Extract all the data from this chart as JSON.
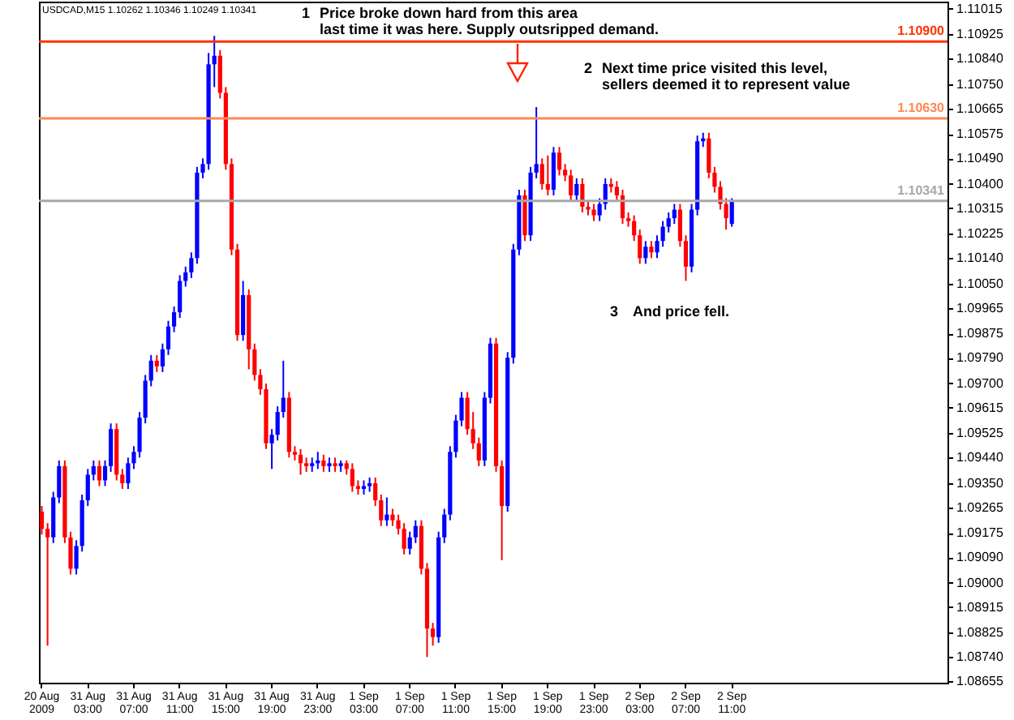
{
  "chart_data": {
    "type": "candlestick",
    "title": "USDCAD,M15  1.10262 1.10346 1.10249 1.10341",
    "annotations": [
      "1",
      "Price broke down hard from this area\nlast time it was here.  Supply outsripped demand.",
      "2",
      "Next time price visited this level,\nsellers deemed it to represent value",
      "3",
      "And price fell."
    ],
    "categories": [
      "20 Aug 2009",
      null,
      null,
      null,
      null,
      null,
      null,
      null,
      "31 Aug 03:00",
      null,
      null,
      null,
      null,
      null,
      null,
      null,
      "31 Aug 07:00",
      null,
      null,
      null,
      null,
      null,
      null,
      null,
      "31 Aug 11:00",
      null,
      null,
      null,
      null,
      null,
      null,
      null,
      "31 Aug 15:00",
      null,
      null,
      null,
      null,
      null,
      null,
      null,
      "31 Aug 19:00",
      null,
      null,
      null,
      null,
      null,
      null,
      null,
      "31 Aug 23:00",
      null,
      null,
      null,
      null,
      null,
      null,
      null,
      "1 Sep 03:00",
      null,
      null,
      null,
      null,
      null,
      null,
      null,
      "1 Sep 07:00",
      null,
      null,
      null,
      null,
      null,
      null,
      null,
      "1 Sep 11:00",
      null,
      null,
      null,
      null,
      null,
      null,
      null,
      "1 Sep 15:00",
      null,
      null,
      null,
      null,
      null,
      null,
      null,
      "1 Sep 19:00",
      null,
      null,
      null,
      null,
      null,
      null,
      null,
      "1 Sep 23:00",
      null,
      null,
      null,
      null,
      null,
      null,
      null,
      "2 Sep 03:00",
      null,
      null,
      null,
      null,
      null,
      null,
      null,
      "2 Sep 07:00",
      null,
      null,
      null,
      null,
      null,
      null,
      null,
      "2 Sep 11:00",
      null,
      null,
      null,
      null,
      null,
      null,
      null,
      null,
      null,
      null,
      null,
      null,
      null,
      null,
      null,
      null,
      null,
      null,
      null,
      null,
      null,
      null,
      null,
      null,
      null,
      null,
      null,
      null,
      null,
      null,
      null,
      null,
      null,
      null,
      null,
      null,
      null
    ],
    "ohlc": [
      [
        1.0925,
        1.0927,
        1.0917,
        1.0919
      ],
      [
        1.0919,
        1.0921,
        1.0878,
        1.0916
      ],
      [
        1.0916,
        1.0932,
        1.0914,
        1.093
      ],
      [
        1.093,
        1.0943,
        1.0928,
        1.0941
      ],
      [
        1.0941,
        1.0943,
        1.0914,
        1.0916
      ],
      [
        1.0916,
        1.0918,
        1.0903,
        1.0905
      ],
      [
        1.0905,
        1.0915,
        1.0903,
        1.0913
      ],
      [
        1.0913,
        1.0931,
        1.0911,
        1.0929
      ],
      [
        1.0929,
        1.094,
        1.0927,
        1.0938
      ],
      [
        1.0938,
        1.0943,
        1.0936,
        1.0941
      ],
      [
        1.0941,
        1.0943,
        1.0934,
        1.0936
      ],
      [
        1.0936,
        1.0943,
        1.0934,
        1.0941
      ],
      [
        1.0941,
        1.0956,
        1.0939,
        1.0954
      ],
      [
        1.0954,
        1.0956,
        1.0936,
        1.0938
      ],
      [
        1.0938,
        1.094,
        1.0933,
        1.0935
      ],
      [
        1.0935,
        1.0944,
        1.0933,
        1.0942
      ],
      [
        1.0942,
        1.0948,
        1.094,
        1.0946
      ],
      [
        1.0946,
        1.096,
        1.0944,
        1.0958
      ],
      [
        1.0958,
        1.0973,
        1.0956,
        1.0971
      ],
      [
        1.0971,
        1.098,
        1.0969,
        1.0978
      ],
      [
        1.0978,
        1.098,
        1.0974,
        1.0976
      ],
      [
        1.0976,
        1.0984,
        1.0974,
        1.0982
      ],
      [
        1.0982,
        1.0992,
        1.098,
        1.099
      ],
      [
        1.099,
        1.0997,
        1.0988,
        1.0995
      ],
      [
        1.0995,
        1.1008,
        1.0993,
        1.1006
      ],
      [
        1.1006,
        1.1011,
        1.1004,
        1.1009
      ],
      [
        1.1009,
        1.1016,
        1.1007,
        1.1014
      ],
      [
        1.1014,
        1.1046,
        1.1012,
        1.1044
      ],
      [
        1.1044,
        1.1049,
        1.1042,
        1.1047
      ],
      [
        1.1047,
        1.1086,
        1.1045,
        1.1082
      ],
      [
        1.1082,
        1.1092,
        1.1074,
        1.1085
      ],
      [
        1.1085,
        1.1087,
        1.107,
        1.1072
      ],
      [
        1.1072,
        1.1074,
        1.1045,
        1.1047
      ],
      [
        1.1047,
        1.1049,
        1.1015,
        1.1017
      ],
      [
        1.1017,
        1.1019,
        1.0985,
        1.0987
      ],
      [
        1.0987,
        1.1006,
        1.0985,
        1.1001
      ],
      [
        1.1001,
        1.1003,
        1.0975,
        1.0982
      ],
      [
        1.0982,
        1.0984,
        1.0971,
        1.0973
      ],
      [
        1.0973,
        1.0975,
        1.0966,
        1.0968
      ],
      [
        1.0968,
        1.097,
        1.0947,
        1.0949
      ],
      [
        1.0949,
        1.0954,
        1.094,
        1.0952
      ],
      [
        1.0952,
        1.0962,
        1.095,
        1.096
      ],
      [
        1.096,
        1.0978,
        1.0958,
        1.0965
      ],
      [
        1.0965,
        1.0967,
        1.0944,
        1.0946
      ],
      [
        1.0946,
        1.0948,
        1.0943,
        1.0945
      ],
      [
        1.0945,
        1.0947,
        1.0938,
        1.0942
      ],
      [
        1.0942,
        1.0944,
        1.0939,
        1.0941
      ],
      [
        1.0941,
        1.0944,
        1.0939,
        1.0942
      ],
      [
        1.0942,
        1.0946,
        1.094,
        1.0943
      ],
      [
        1.0943,
        1.0945,
        1.0939,
        1.0941
      ],
      [
        1.0941,
        1.0944,
        1.0939,
        1.0942
      ],
      [
        1.0942,
        1.0944,
        1.0939,
        1.0941
      ],
      [
        1.0941,
        1.0943,
        1.0939,
        1.0942
      ],
      [
        1.0942,
        1.0943,
        1.0938,
        1.094
      ],
      [
        1.094,
        1.0942,
        1.0932,
        1.0934
      ],
      [
        1.0934,
        1.0936,
        1.0931,
        1.0933
      ],
      [
        1.0933,
        1.0936,
        1.0931,
        1.0934
      ],
      [
        1.0934,
        1.0937,
        1.0932,
        1.0935
      ],
      [
        1.0935,
        1.0937,
        1.0927,
        1.0929
      ],
      [
        1.0929,
        1.0931,
        1.092,
        1.0922
      ],
      [
        1.0922,
        1.093,
        1.092,
        1.0924
      ],
      [
        1.0924,
        1.0926,
        1.092,
        1.0922
      ],
      [
        1.0922,
        1.0924,
        1.0917,
        1.0919
      ],
      [
        1.0919,
        1.0921,
        1.091,
        1.0912
      ],
      [
        1.0912,
        1.0918,
        1.091,
        1.0916
      ],
      [
        1.0916,
        1.0922,
        1.0914,
        1.092
      ],
      [
        1.092,
        1.0922,
        1.0903,
        1.0905
      ],
      [
        1.0905,
        1.0907,
        1.0874,
        1.0884
      ],
      [
        1.0884,
        1.0886,
        1.0878,
        1.0881
      ],
      [
        1.0881,
        1.0918,
        1.0879,
        1.0916
      ],
      [
        1.0916,
        1.0926,
        1.0914,
        1.0924
      ],
      [
        1.0924,
        1.0948,
        1.0922,
        1.0946
      ],
      [
        1.0946,
        1.0959,
        1.0944,
        1.0957
      ],
      [
        1.0957,
        1.0967,
        1.0955,
        1.0965
      ],
      [
        1.0965,
        1.0967,
        1.0952,
        1.0954
      ],
      [
        1.0954,
        1.096,
        1.0947,
        1.0949
      ],
      [
        1.0949,
        1.0951,
        1.0941,
        1.0943
      ],
      [
        1.0943,
        1.0967,
        1.0941,
        1.0965
      ],
      [
        1.0965,
        1.0986,
        1.0963,
        1.0984
      ],
      [
        1.0984,
        1.0986,
        1.0939,
        1.0941
      ],
      [
        1.0941,
        1.0943,
        1.0908,
        1.0927
      ],
      [
        1.0927,
        1.0981,
        1.0925,
        1.0979
      ],
      [
        1.0979,
        1.1019,
        1.0977,
        1.1017
      ],
      [
        1.1017,
        1.1038,
        1.1015,
        1.1036
      ],
      [
        1.1036,
        1.1038,
        1.102,
        1.1022
      ],
      [
        1.1022,
        1.1046,
        1.102,
        1.1044
      ],
      [
        1.1044,
        1.1067,
        1.1042,
        1.1047
      ],
      [
        1.1047,
        1.1049,
        1.1038,
        1.104
      ],
      [
        1.104,
        1.105,
        1.1036,
        1.1038
      ],
      [
        1.1038,
        1.1053,
        1.1036,
        1.1051
      ],
      [
        1.1051,
        1.1053,
        1.1043,
        1.1045
      ],
      [
        1.1045,
        1.1047,
        1.1041,
        1.1043
      ],
      [
        1.1043,
        1.1045,
        1.1034,
        1.1036
      ],
      [
        1.1036,
        1.1042,
        1.1034,
        1.104
      ],
      [
        1.104,
        1.1042,
        1.103,
        1.1032
      ],
      [
        1.1032,
        1.1034,
        1.1029,
        1.1031
      ],
      [
        1.1031,
        1.1033,
        1.1027,
        1.1029
      ],
      [
        1.1029,
        1.1035,
        1.1027,
        1.1033
      ],
      [
        1.1033,
        1.1042,
        1.1031,
        1.104
      ],
      [
        1.104,
        1.1042,
        1.1037,
        1.1039
      ],
      [
        1.1039,
        1.1041,
        1.1034,
        1.1036
      ],
      [
        1.1036,
        1.1038,
        1.1026,
        1.1028
      ],
      [
        1.1028,
        1.103,
        1.1025,
        1.1027
      ],
      [
        1.1027,
        1.1029,
        1.102,
        1.1022
      ],
      [
        1.1022,
        1.1024,
        1.1012,
        1.1014
      ],
      [
        1.1014,
        1.102,
        1.1012,
        1.1018
      ],
      [
        1.1018,
        1.102,
        1.1014,
        1.1016
      ],
      [
        1.1016,
        1.1022,
        1.1014,
        1.102
      ],
      [
        1.102,
        1.1027,
        1.1018,
        1.1025
      ],
      [
        1.1025,
        1.103,
        1.1023,
        1.1028
      ],
      [
        1.1028,
        1.1033,
        1.1026,
        1.1031
      ],
      [
        1.1031,
        1.1033,
        1.1018,
        1.102
      ],
      [
        1.102,
        1.1022,
        1.1006,
        1.1011
      ],
      [
        1.1011,
        1.1033,
        1.1009,
        1.1031
      ],
      [
        1.1031,
        1.1057,
        1.1029,
        1.1055
      ],
      [
        1.1055,
        1.1058,
        1.1053,
        1.1056
      ],
      [
        1.1056,
        1.1058,
        1.1042,
        1.1044
      ],
      [
        1.1044,
        1.1046,
        1.1037,
        1.1039
      ],
      [
        1.1039,
        1.1041,
        1.1031,
        1.1033
      ],
      [
        1.1033,
        1.1035,
        1.1024,
        1.1028
      ],
      [
        1.1026,
        1.1035,
        1.1025,
        1.1034
      ],
      null,
      null,
      null,
      null,
      null,
      null,
      null,
      null,
      null,
      null,
      null,
      null,
      null,
      null,
      null,
      null,
      null,
      null,
      null,
      null,
      null,
      null,
      null,
      null,
      null,
      null,
      null,
      null,
      null,
      null,
      null,
      null,
      null,
      null,
      null,
      null,
      null
    ],
    "colors": [
      "#ff0000",
      "#ff0000",
      "#0000ff",
      "#0000ff",
      "#ff0000",
      "#ff0000",
      "#0000ff",
      "#0000ff",
      "#0000ff",
      "#0000ff",
      "#ff0000",
      "#0000ff",
      "#0000ff",
      "#ff0000",
      "#ff0000",
      "#0000ff",
      "#0000ff",
      "#0000ff",
      "#0000ff",
      "#0000ff",
      "#ff0000",
      "#0000ff",
      "#0000ff",
      "#0000ff",
      "#0000ff",
      "#0000ff",
      "#0000ff",
      "#0000ff",
      "#0000ff",
      "#0000ff",
      "#0000ff",
      "#ff0000",
      "#ff0000",
      "#ff0000",
      "#ff0000",
      "#0000ff",
      "#ff0000",
      "#ff0000",
      "#ff0000",
      "#ff0000",
      "#0000ff",
      "#0000ff",
      "#0000ff",
      "#ff0000",
      "#ff0000",
      "#ff0000",
      "#ff0000",
      "#0000ff",
      "#0000ff",
      "#ff0000",
      "#0000ff",
      "#ff0000",
      "#0000ff",
      "#ff0000",
      "#ff0000",
      "#ff0000",
      "#0000ff",
      "#0000ff",
      "#ff0000",
      "#ff0000",
      "#0000ff",
      "#ff0000",
      "#ff0000",
      "#ff0000",
      "#0000ff",
      "#0000ff",
      "#ff0000",
      "#ff0000",
      "#ff0000",
      "#0000ff",
      "#0000ff",
      "#0000ff",
      "#0000ff",
      "#0000ff",
      "#ff0000",
      "#ff0000",
      "#ff0000",
      "#0000ff",
      "#0000ff",
      "#ff0000",
      "#ff0000",
      "#0000ff",
      "#0000ff",
      "#0000ff",
      "#ff0000",
      "#0000ff",
      "#0000ff",
      "#ff0000",
      "#ff0000",
      "#0000ff",
      "#ff0000",
      "#ff0000",
      "#ff0000",
      "#0000ff",
      "#ff0000",
      "#ff0000",
      "#ff0000",
      "#0000ff",
      "#0000ff",
      "#ff0000",
      "#ff0000",
      "#ff0000",
      "#ff0000",
      "#ff0000",
      "#ff0000",
      "#0000ff",
      "#ff0000",
      "#0000ff",
      "#0000ff",
      "#0000ff",
      "#0000ff",
      "#ff0000",
      "#ff0000",
      "#0000ff",
      "#0000ff",
      "#0000ff",
      "#ff0000",
      "#ff0000",
      "#ff0000",
      "#ff0000",
      "#0000ff",
      null,
      null,
      null,
      null,
      null,
      null,
      null,
      null,
      null,
      null,
      null,
      null,
      null,
      null,
      null,
      null,
      null,
      null,
      null,
      null,
      null,
      null,
      null,
      null,
      null,
      null,
      null,
      null,
      null,
      null,
      null,
      null,
      null,
      null,
      null,
      null,
      null
    ],
    "ylim": [
      1.0865,
      1.1104
    ],
    "yticks": [
      1.11015,
      1.10925,
      {
        "value": 1.1084,
        "label": "1.10840"
      },
      {
        "value": 1.1075,
        "label": "1.10750"
      },
      1.10665,
      1.10575,
      {
        "value": 1.1049,
        "label": "1.10490"
      },
      {
        "value": 1.104,
        "label": "1.10400"
      },
      1.10315,
      1.10225,
      {
        "value": 1.1014,
        "label": "1.10140"
      },
      {
        "value": 1.1005,
        "label": "1.10050"
      },
      1.09965,
      1.09875,
      {
        "value": 1.0979,
        "label": "1.09790"
      },
      {
        "value": 1.097,
        "label": "1.09700"
      },
      1.09615,
      1.09525,
      {
        "value": 1.0944,
        "label": "1.09440"
      },
      {
        "value": 1.0935,
        "label": "1.09350"
      },
      1.09265,
      1.09175,
      {
        "value": 1.0909,
        "label": "1.09090"
      },
      {
        "value": 1.09,
        "label": "1.09000"
      },
      1.08915,
      1.08825,
      {
        "value": 1.0874,
        "label": "1.08740"
      },
      1.08655
    ],
    "ref_lines": [
      {
        "axis": "y",
        "value": 1.109,
        "label": "1.10900",
        "color": "#ff3300"
      },
      {
        "axis": "y",
        "value": 1.1063,
        "label": "1.10630",
        "color": "#ff8855"
      },
      {
        "axis": "y",
        "value": 1.10341,
        "label": "1.10341",
        "color": "#a8a8a8"
      }
    ]
  }
}
